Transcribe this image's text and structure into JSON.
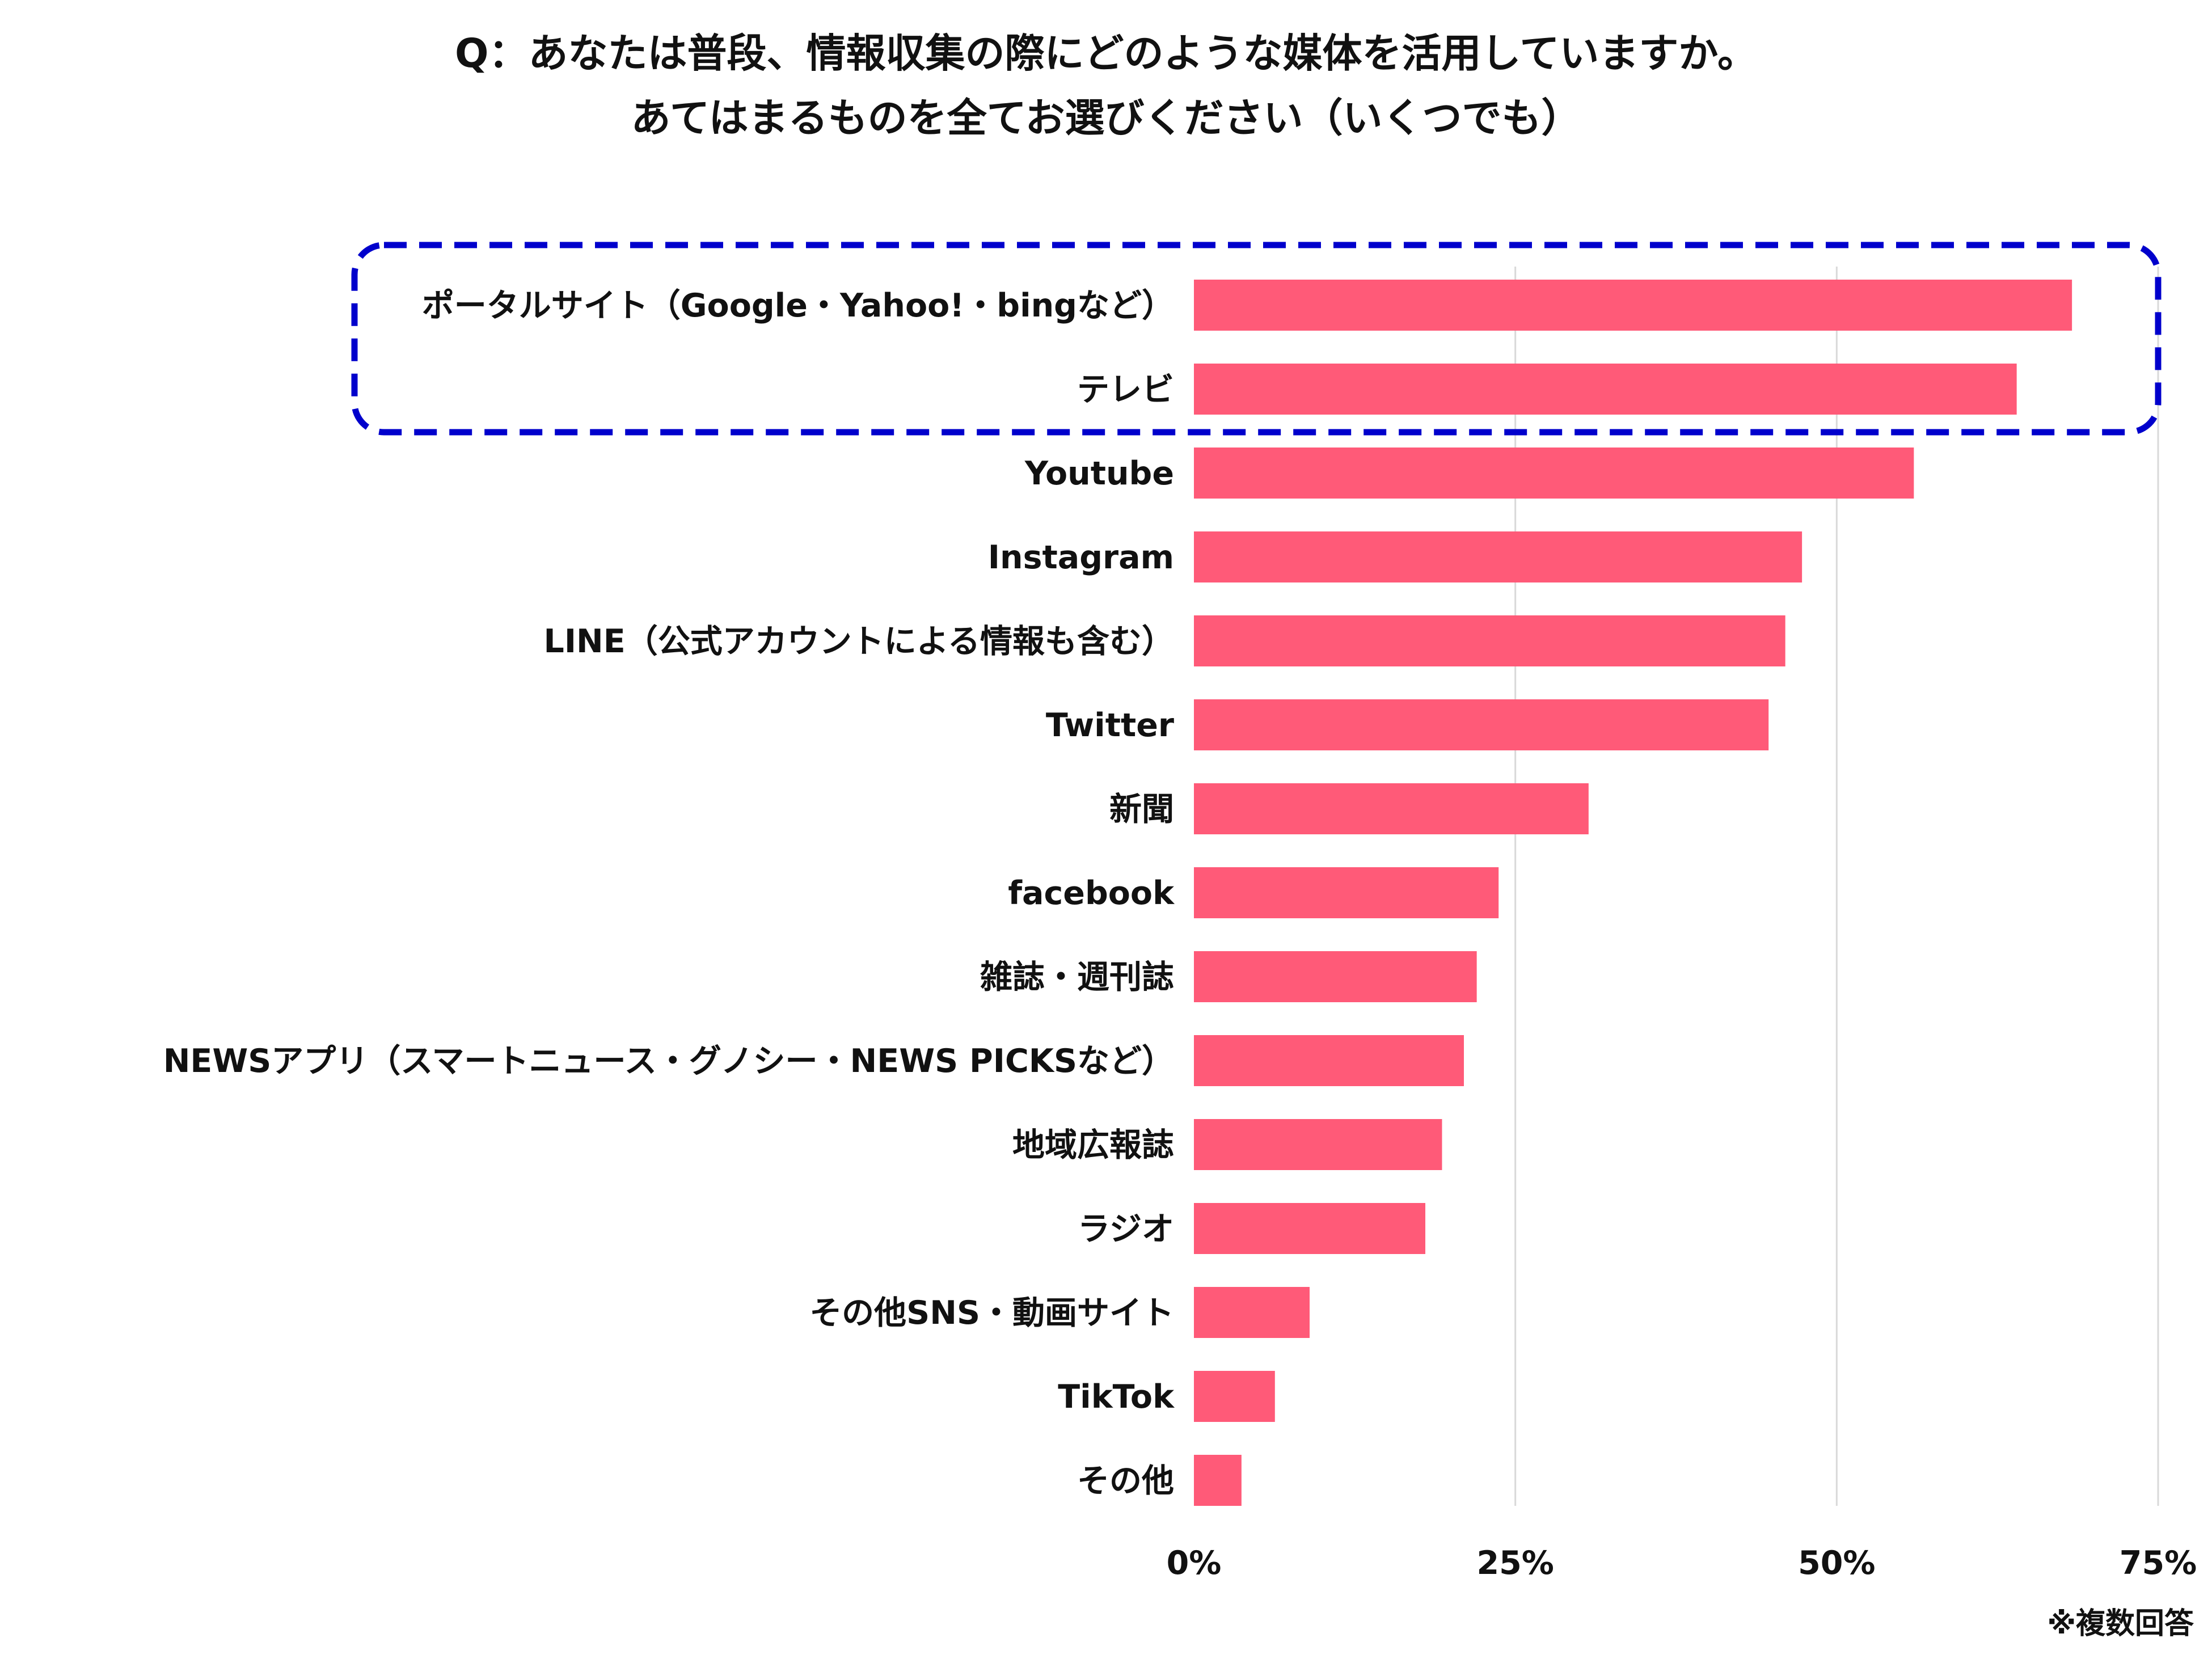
{
  "chart_data": {
    "type": "bar",
    "orientation": "horizontal",
    "title": [
      "Q：あなたは普段、情報収集の際にどのような媒体を活用していますか。",
      "あてはまるものを全てお選びください（いくつでも）"
    ],
    "categories": [
      "ポータルサイト（Google・Yahoo!・bingなど）",
      "テレビ",
      "Youtube",
      "Instagram",
      "LINE（公式アカウントによる情報も含む）",
      "Twitter",
      "新聞",
      "facebook",
      "雑誌・週刊誌",
      "NEWSアプリ（スマートニュース・グノシー・NEWS PICKSなど）",
      "地域広報誌",
      "ラジオ",
      "その他SNS・動画サイト",
      "TikTok",
      "その他"
    ],
    "values": [
      68.3,
      64.0,
      56.0,
      47.3,
      46.0,
      44.7,
      30.7,
      23.7,
      22.0,
      21.0,
      19.3,
      18.0,
      9.0,
      6.3,
      3.7
    ],
    "unit": "%",
    "xlim": [
      0,
      75
    ],
    "ticks": [
      0,
      25,
      50,
      75
    ],
    "tick_labels": [
      "0%",
      "25%",
      "50%",
      "75%"
    ],
    "grid": true,
    "bar_color": "#ff5a78",
    "highlight": {
      "categories": [
        "ポータルサイト（Google・Yahoo!・bingなど）",
        "テレビ"
      ],
      "style": "dashed-box",
      "color": "#0000cc"
    },
    "note": "※複数回答"
  }
}
